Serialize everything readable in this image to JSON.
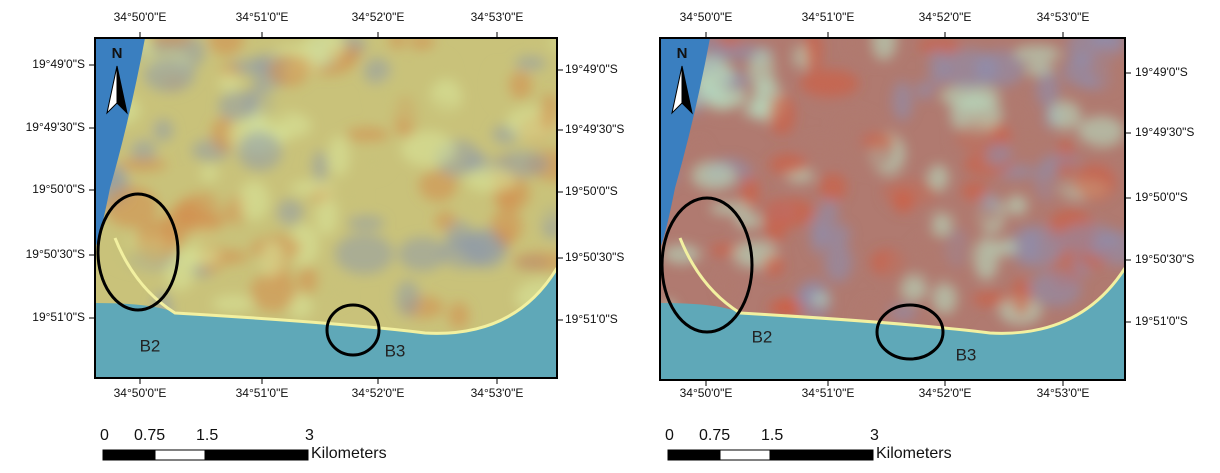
{
  "panels": [
    {
      "top_labels": [
        "34°50'0\"E",
        "34°51'0\"E",
        "34°52'0\"E",
        "34°53'0\"E"
      ],
      "bottom_labels": [
        "34°50'0\"E",
        "34°51'0\"E",
        "34°52'0\"E",
        "34°53'0\"E"
      ],
      "left_labels": [
        "19°49'0\"S",
        "19°49'30\"S",
        "19°50'0\"S",
        "19°50'30\"S",
        "19°51'0\"S"
      ],
      "right_labels": [
        "19°49'0\"S",
        "19°49'30\"S",
        "19°50'0\"S",
        "19°50'30\"S",
        "19°51'0\"S"
      ],
      "north": "N",
      "annotations": [
        "B2",
        "B3"
      ],
      "scale": {
        "labels": [
          "0",
          "0.75",
          "1.5",
          "3"
        ],
        "unit": "Kilometers"
      }
    },
    {
      "top_labels": [
        "34°50'0\"E",
        "34°51'0\"E",
        "34°52'0\"E",
        "34°53'0\"E"
      ],
      "bottom_labels": [
        "34°50'0\"E",
        "34°51'0\"E",
        "34°52'0\"E",
        "34°53'0\"E"
      ],
      "right_labels": [
        "19°49'0\"S",
        "19°49'30\"S",
        "19°50'0\"S",
        "19°50'30\"S",
        "19°51'0\"S"
      ],
      "north": "N",
      "annotations": [
        "B2",
        "B3"
      ],
      "scale": {
        "labels": [
          "0",
          "0.75",
          "1.5",
          "3"
        ],
        "unit": "Kilometers"
      }
    }
  ]
}
